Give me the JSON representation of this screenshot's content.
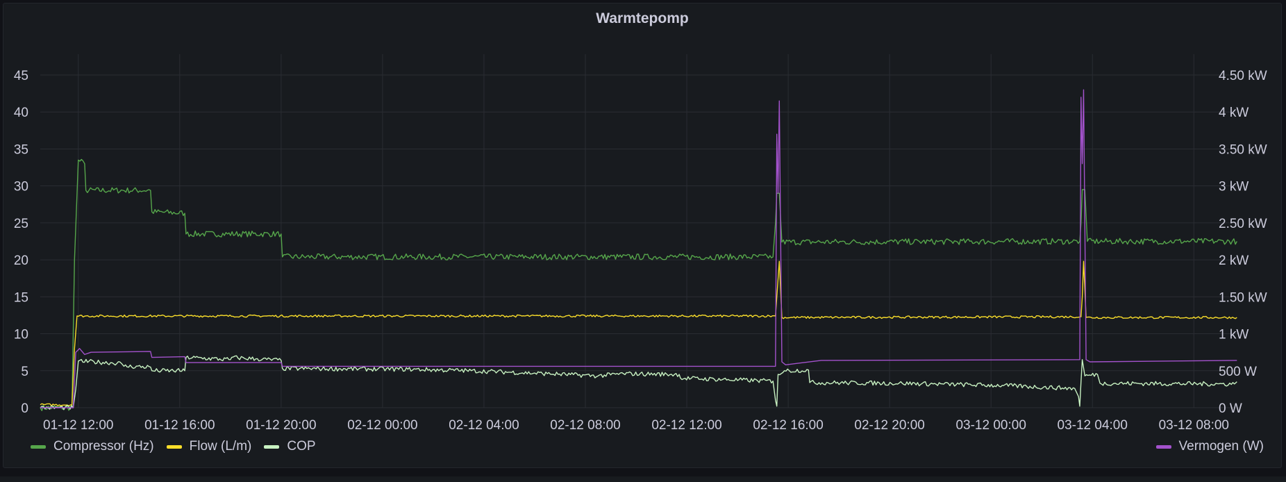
{
  "panel": {
    "title": "Warmtepomp"
  },
  "legend": {
    "left": [
      {
        "label": "Compressor (Hz)",
        "color": "#56a64b"
      },
      {
        "label": "Flow (L/m)",
        "color": "#fade2a"
      },
      {
        "label": "COP",
        "color": "#c8f2c2"
      }
    ],
    "right": [
      {
        "label": "Vermogen (W)",
        "color": "#a352cc"
      }
    ]
  },
  "chart_data": {
    "type": "line",
    "title": "Warmtepomp",
    "x_unit": "hours since 01-12 10:30",
    "x_range": [
      0,
      47.3
    ],
    "x_ticks": [
      {
        "x": 1.5,
        "label": "01-12 12:00"
      },
      {
        "x": 5.5,
        "label": "01-12 16:00"
      },
      {
        "x": 9.5,
        "label": "01-12 20:00"
      },
      {
        "x": 13.5,
        "label": "02-12 00:00"
      },
      {
        "x": 17.5,
        "label": "02-12 04:00"
      },
      {
        "x": 21.5,
        "label": "02-12 08:00"
      },
      {
        "x": 25.5,
        "label": "02-12 12:00"
      },
      {
        "x": 29.5,
        "label": "02-12 16:00"
      },
      {
        "x": 33.5,
        "label": "02-12 20:00"
      },
      {
        "x": 37.5,
        "label": "03-12 00:00"
      },
      {
        "x": 41.5,
        "label": "03-12 04:00"
      },
      {
        "x": 45.5,
        "label": "03-12 08:00"
      }
    ],
    "y_left": {
      "range": [
        0,
        45
      ],
      "ticks": [
        0,
        5,
        10,
        15,
        20,
        25,
        30,
        35,
        40,
        45
      ]
    },
    "y_right": {
      "range_watts": [
        0,
        4500
      ],
      "ticks": [
        {
          "value": 0,
          "label": "0 W"
        },
        {
          "value": 500,
          "label": "500 W"
        },
        {
          "value": 1000,
          "label": "1 kW"
        },
        {
          "value": 1500,
          "label": "1.50 kW"
        },
        {
          "value": 2000,
          "label": "2 kW"
        },
        {
          "value": 2500,
          "label": "2.50 kW"
        },
        {
          "value": 3000,
          "label": "3 kW"
        },
        {
          "value": 3500,
          "label": "3.50 kW"
        },
        {
          "value": 4000,
          "label": "4 kW"
        },
        {
          "value": 4500,
          "label": "4.50 kW"
        }
      ]
    },
    "grid": true,
    "legend_position": "bottom",
    "series": [
      {
        "name": "Compressor (Hz)",
        "axis": "left",
        "color": "#56a64b",
        "noise": 0.4,
        "points": [
          [
            0,
            0
          ],
          [
            1.25,
            0
          ],
          [
            1.35,
            20
          ],
          [
            1.5,
            33.5
          ],
          [
            1.75,
            33
          ],
          [
            1.8,
            29.4
          ],
          [
            4.35,
            29.4
          ],
          [
            4.4,
            26.5
          ],
          [
            5.7,
            26.3
          ],
          [
            5.75,
            23.5
          ],
          [
            9.5,
            23.5
          ],
          [
            9.55,
            20.4
          ],
          [
            28.9,
            20.4
          ],
          [
            29.0,
            25
          ],
          [
            29.05,
            29
          ],
          [
            29.15,
            29
          ],
          [
            29.25,
            22.4
          ],
          [
            41.0,
            22.5
          ],
          [
            41.05,
            25
          ],
          [
            41.1,
            29.5
          ],
          [
            41.2,
            29.5
          ],
          [
            41.3,
            22.5
          ],
          [
            47.2,
            22.5
          ]
        ]
      },
      {
        "name": "Flow (L/m)",
        "axis": "left",
        "color": "#fade2a",
        "noise": 0.15,
        "points": [
          [
            0,
            0.4
          ],
          [
            1.25,
            0.4
          ],
          [
            1.35,
            8
          ],
          [
            1.45,
            12.4
          ],
          [
            29.0,
            12.4
          ],
          [
            29.05,
            15
          ],
          [
            29.15,
            19.8
          ],
          [
            29.25,
            12.2
          ],
          [
            41.05,
            12.3
          ],
          [
            41.1,
            15
          ],
          [
            41.15,
            19.8
          ],
          [
            41.25,
            12.2
          ],
          [
            47.2,
            12.2
          ]
        ]
      },
      {
        "name": "COP",
        "axis": "left",
        "color": "#c8f2c2",
        "noise": 0.3,
        "points": [
          [
            0,
            0
          ],
          [
            1.3,
            0
          ],
          [
            1.4,
            2.5
          ],
          [
            1.5,
            6.3
          ],
          [
            3.2,
            6.0
          ],
          [
            3.3,
            5.6
          ],
          [
            4.35,
            5.5
          ],
          [
            4.4,
            5.0
          ],
          [
            5.7,
            5.0
          ],
          [
            5.75,
            6.8
          ],
          [
            7.5,
            6.5
          ],
          [
            7.55,
            6.8
          ],
          [
            8.5,
            6.6
          ],
          [
            9.5,
            6.4
          ],
          [
            9.55,
            5.3
          ],
          [
            14.5,
            5.2
          ],
          [
            17.0,
            5.0
          ],
          [
            20.0,
            4.6
          ],
          [
            22.0,
            4.3
          ],
          [
            23.0,
            4.6
          ],
          [
            25.2,
            4.5
          ],
          [
            25.25,
            4.0
          ],
          [
            28.9,
            3.6
          ],
          [
            29.0,
            1.0
          ],
          [
            29.05,
            0.2
          ],
          [
            29.1,
            4.5
          ],
          [
            29.35,
            5.0
          ],
          [
            30.3,
            5.1
          ],
          [
            30.35,
            3.4
          ],
          [
            34.0,
            3.3
          ],
          [
            38.0,
            3.0
          ],
          [
            40.8,
            2.6
          ],
          [
            40.95,
            1.5
          ],
          [
            41.0,
            0.2
          ],
          [
            41.05,
            3.5
          ],
          [
            41.1,
            6.5
          ],
          [
            41.2,
            4.3
          ],
          [
            41.7,
            4.5
          ],
          [
            41.8,
            3.3
          ],
          [
            47.1,
            3.2
          ],
          [
            47.2,
            3.5
          ]
        ]
      },
      {
        "name": "Vermogen (W)",
        "axis": "right",
        "color": "#a352cc",
        "noise": 0,
        "points": [
          [
            0,
            0
          ],
          [
            1.3,
            0
          ],
          [
            1.4,
            750
          ],
          [
            1.55,
            800
          ],
          [
            1.75,
            720
          ],
          [
            2.0,
            750
          ],
          [
            4.35,
            760
          ],
          [
            4.4,
            680
          ],
          [
            5.7,
            690
          ],
          [
            5.75,
            610
          ],
          [
            9.5,
            610
          ],
          [
            9.55,
            560
          ],
          [
            29.0,
            560
          ],
          [
            29.05,
            3700
          ],
          [
            29.1,
            2900
          ],
          [
            29.15,
            4150
          ],
          [
            29.25,
            620
          ],
          [
            29.4,
            580
          ],
          [
            30.8,
            640
          ],
          [
            41.0,
            650
          ],
          [
            41.05,
            4200
          ],
          [
            41.1,
            3300
          ],
          [
            41.15,
            4300
          ],
          [
            41.25,
            650
          ],
          [
            41.4,
            620
          ],
          [
            47.2,
            640
          ]
        ]
      }
    ]
  }
}
